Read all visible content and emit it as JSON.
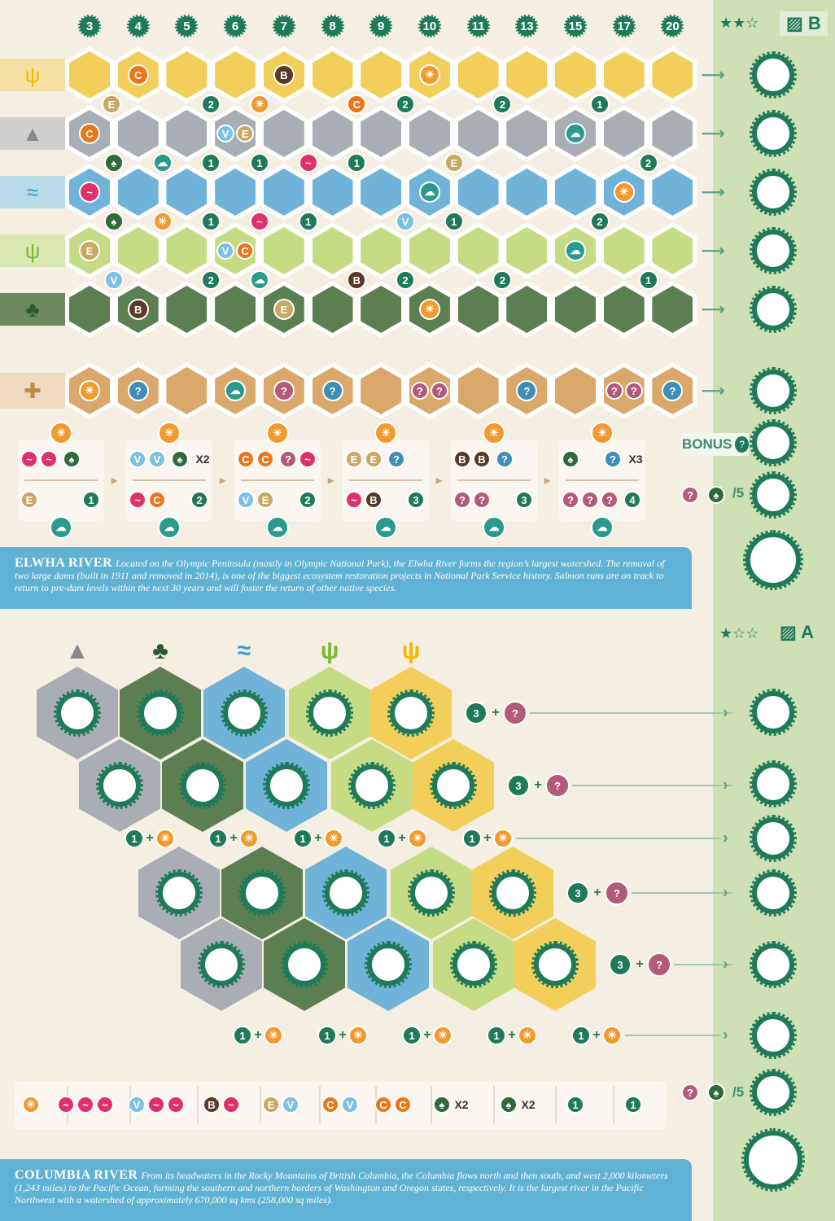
{
  "colors": {
    "grass": "#f2cf5b",
    "mountain": "#a9aeb5",
    "water": "#6fb3d8",
    "wetland": "#c6dc84",
    "forest": "#5c7f52",
    "bonus": "#d9a86a",
    "accent": "#1f7a5a",
    "info": "#5fb2d3"
  },
  "tokens": {
    "cougar": {
      "color": "#e9761a",
      "glyph": "C"
    },
    "bear": {
      "color": "#5a3a26",
      "glyph": "B"
    },
    "elk": {
      "color": "#c9a864",
      "glyph": "E"
    },
    "sun": {
      "color": "#f29a2e",
      "glyph": "☀"
    },
    "rain": {
      "color": "#2a9a8e",
      "glyph": "☁"
    },
    "salmon": {
      "color": "#e0306a",
      "glyph": "~"
    },
    "eagle": {
      "color": "#7cc0e4",
      "glyph": "V"
    },
    "pinecone": {
      "color": "#2f6b3a",
      "glyph": "♠"
    },
    "question": {
      "color": "#b35a7a",
      "glyph": "?"
    },
    "wild": {
      "color": "#3d8fb8",
      "glyph": "?"
    }
  },
  "sheet_b": {
    "difficulty": "★★☆",
    "label": "B",
    "costs": [
      "3",
      "4",
      "5",
      "6",
      "7",
      "8",
      "9",
      "10",
      "11",
      "13",
      "15",
      "17",
      "20"
    ],
    "rows": [
      {
        "terrain": "grass",
        "icon": "grass-icon",
        "hexes": {
          "1": [
            "cougar"
          ],
          "4": [
            "bear"
          ],
          "7": [
            "sun"
          ]
        }
      },
      {
        "terrain": "mountain",
        "icon": "mountain-icon",
        "hexes": {
          "0": [
            "cougar"
          ],
          "3": [
            "eagle",
            "elk"
          ],
          "10": [
            "rain"
          ]
        }
      },
      {
        "terrain": "water",
        "icon": "water-icon",
        "hexes": {
          "0": [
            "salmon"
          ],
          "7": [
            "rain"
          ],
          "11": [
            "sun"
          ]
        }
      },
      {
        "terrain": "wetland",
        "icon": "wetland-icon",
        "hexes": {
          "0": [
            "elk"
          ],
          "3": [
            "eagle",
            "cougar"
          ],
          "10": [
            "rain"
          ]
        }
      },
      {
        "terrain": "forest",
        "icon": "forest-icon",
        "hexes": {
          "1": [
            "bear"
          ],
          "4": [
            "elk"
          ],
          "7": [
            "sun"
          ]
        }
      }
    ],
    "between": [
      [
        [
          "elk",
          0.45
        ],
        [
          "2",
          2.5
        ],
        [
          "sun",
          3.5
        ],
        [
          "cougar",
          5.5
        ],
        [
          "2",
          6.5
        ],
        [
          "2",
          8.5
        ],
        [
          "1",
          10.5
        ]
      ],
      [
        [
          "pinecone",
          0.5
        ],
        [
          "rain",
          1.5
        ],
        [
          "1",
          2.5
        ],
        [
          "1",
          3.5
        ],
        [
          "salmon",
          4.5
        ],
        [
          "1",
          5.5
        ],
        [
          "elk",
          7.5
        ],
        [
          "2",
          11.5
        ]
      ],
      [
        [
          "pinecone",
          0.5
        ],
        [
          "sun",
          1.5
        ],
        [
          "1",
          2.5
        ],
        [
          "salmon",
          3.5
        ],
        [
          "1",
          4.5
        ],
        [
          "eagle",
          6.5
        ],
        [
          "1",
          7.5
        ],
        [
          "2",
          10.5
        ]
      ],
      [
        [
          "eagle",
          0.5
        ],
        [
          "2",
          2.5
        ],
        [
          "rain",
          3.5
        ],
        [
          "bear",
          5.5
        ],
        [
          "2",
          6.5
        ],
        [
          "2",
          8.5
        ],
        [
          "1",
          11.5
        ]
      ]
    ],
    "bonus_row": [
      [
        "sun"
      ],
      [
        "wild"
      ],
      [],
      [
        "rain"
      ],
      [
        "question"
      ],
      [
        "wild"
      ],
      [],
      [
        "question",
        "question"
      ],
      [],
      [
        "wild"
      ],
      [],
      [
        "question",
        "question"
      ],
      [
        "wild"
      ]
    ],
    "cards": [
      {
        "tl": [
          "salmon",
          "salmon"
        ],
        "tr": [
          "pinecone"
        ],
        "tr_mult": "",
        "bl": [
          "elk"
        ],
        "br": "1"
      },
      {
        "tl": [
          "eagle",
          "eagle"
        ],
        "tr": [
          "pinecone"
        ],
        "tr_mult": "X2",
        "bl": [
          "salmon",
          "cougar"
        ],
        "br": "2"
      },
      {
        "tl": [
          "cougar",
          "cougar"
        ],
        "tr": [
          "question",
          "salmon"
        ],
        "tr_mult": "",
        "bl": [
          "eagle",
          "elk"
        ],
        "br": "2"
      },
      {
        "tl": [
          "elk",
          "elk"
        ],
        "tr": [
          "wild"
        ],
        "tr_mult": "",
        "bl": [
          "salmon",
          "bear"
        ],
        "br": "3"
      },
      {
        "tl": [
          "bear",
          "bear"
        ],
        "tr": [
          "wild"
        ],
        "tr_mult": "",
        "bl": [
          "question",
          "question"
        ],
        "br": "3"
      },
      {
        "tl": [
          "pinecone"
        ],
        "tr": [
          "wild"
        ],
        "tr_mult": "X3",
        "bl": [
          "question",
          "question",
          "question"
        ],
        "br": "4"
      }
    ],
    "bonus_label": "BONUS",
    "bonus_badge": "?",
    "divide_label": "/5"
  },
  "elwha": {
    "title": "ELWHA RIVER",
    "text": "Located on the Olympic Peninsula (mostly in Olympic National Park), the Elwha River forms the region’s largest watershed. The removal of two large dams (built in 1911 and removed in 2014), is one of the biggest ecosystem restoration projects in National Park Service history. Salmon runs are on track to return to pre-dam levels within the next 30 years and will foster the return of other native species."
  },
  "sheet_a": {
    "difficulty": "★☆☆",
    "label": "A",
    "columns": [
      "mountain",
      "forest",
      "water",
      "wetland",
      "grass"
    ],
    "row_cost": "3",
    "plus": "+",
    "connector_cost": "1",
    "bottom_goals": [
      [
        "sun"
      ],
      [
        "salmon",
        "salmon",
        "salmon"
      ],
      [
        "eagle",
        "salmon",
        "salmon"
      ],
      [
        "bear",
        "salmon"
      ],
      [
        "elk",
        "eagle"
      ],
      [
        "cougar",
        "eagle"
      ],
      [
        "cougar",
        "cougar"
      ],
      [
        "pinecone",
        "X2"
      ],
      [
        "pinecone",
        "X2"
      ],
      [
        "1"
      ],
      [
        "1"
      ]
    ],
    "divide_label": "/5"
  },
  "columbia": {
    "title": "COLUMBIA RIVER",
    "text": "From its headwaters in the Rocky Mountains of British Columbia, the Columbia flows north and then south, and west 2,000 kilometers (1,243 miles) to the Pacific Ocean, forming the southern and northern borders of Washington and Oregon states, respectively. It is the largest river in the Pacific Northwest with a watershed of approximately 670,000 sq kms (258,000 sq miles)."
  }
}
